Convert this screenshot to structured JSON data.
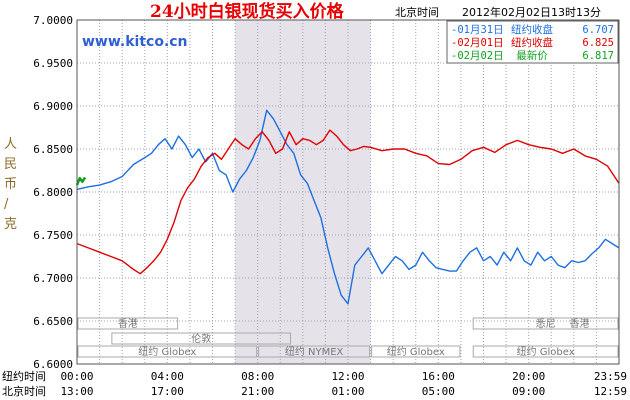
{
  "title": "24小时白银现货买入价格",
  "time_zone_label": "北京时间",
  "timestamp": "2012年02月02日13时13分",
  "watermark": "www.kitco.cn",
  "y_axis_label": "人民币/克",
  "legend": [
    {
      "label": "01月31日",
      "desc": "纽约收盘",
      "value": "6.707",
      "color": "#1e6fe0"
    },
    {
      "label": "02月01日",
      "desc": "纽约收盘",
      "value": "6.825",
      "color": "#e00000"
    },
    {
      "label": "02月02日",
      "desc": "最新价",
      "value": "6.817",
      "color": "#10a020"
    }
  ],
  "sessions": [
    {
      "name": "香港",
      "row": 0,
      "start": 0,
      "end": 4.5
    },
    {
      "name": "悉尼",
      "row": 0,
      "start": 17.5,
      "end": 24
    },
    {
      "name": "香港",
      "row": 0,
      "start": 20.5,
      "end": 24
    },
    {
      "name": "伦敦",
      "row": 1,
      "start": 1.5,
      "end": 9.5
    },
    {
      "name": "纽约 Globex",
      "row": 2,
      "start": 0,
      "end": 8
    },
    {
      "name": "纽约 NYMEX",
      "row": 2,
      "start": 8,
      "end": 13
    },
    {
      "name": "纽约 Globex",
      "row": 2,
      "start": 13,
      "end": 17
    },
    {
      "name": "纽约 Globex",
      "row": 2,
      "start": 17.5,
      "end": 24
    }
  ],
  "x_rows": [
    {
      "label": "纽约时间",
      "ticks": [
        "00:00",
        "04:00",
        "08:00",
        "12:00",
        "16:00",
        "20:00",
        "23:59"
      ]
    },
    {
      "label": "北京时间",
      "ticks": [
        "13:00",
        "17:00",
        "21:00",
        "01:00",
        "05:00",
        "09:00",
        "12:59"
      ]
    }
  ],
  "chart_data": {
    "type": "line",
    "title": "24小时白银现货买入价格",
    "ylabel": "人民币/克",
    "ylim": [
      6.6,
      7.0
    ],
    "xlim": [
      0,
      24
    ],
    "y_ticks": [
      "6.6000",
      "6.6500",
      "6.7000",
      "6.7500",
      "6.8000",
      "6.8500",
      "6.9000",
      "6.9500",
      "7.0000"
    ],
    "grid": true,
    "highlight_band": [
      7.0,
      13.0
    ],
    "legend_position": "top-right",
    "series": [
      {
        "name": "01月31日",
        "color": "#1e6fe0",
        "x": [
          0,
          0.5,
          1,
          1.5,
          2,
          2.5,
          3,
          3.3,
          3.6,
          3.9,
          4.2,
          4.5,
          4.8,
          5.1,
          5.4,
          5.7,
          6,
          6.3,
          6.6,
          6.9,
          7.2,
          7.5,
          7.8,
          8.1,
          8.4,
          8.7,
          9,
          9.3,
          9.6,
          9.9,
          10.2,
          10.5,
          10.8,
          11.1,
          11.4,
          11.7,
          12,
          12.3,
          12.6,
          12.9,
          13.2,
          13.5,
          13.8,
          14.1,
          14.4,
          14.7,
          15,
          15.3,
          15.6,
          15.9,
          16.2,
          16.5,
          16.8,
          17.1,
          17.4,
          17.7,
          18,
          18.3,
          18.6,
          18.9,
          19.2,
          19.5,
          19.8,
          20.1,
          20.4,
          20.7,
          21,
          21.3,
          21.6,
          21.9,
          22.2,
          22.5,
          22.8,
          23.1,
          23.4,
          23.7,
          24
        ],
        "values": [
          6.803,
          6.806,
          6.808,
          6.812,
          6.818,
          6.832,
          6.84,
          6.845,
          6.855,
          6.862,
          6.85,
          6.865,
          6.855,
          6.84,
          6.85,
          6.835,
          6.845,
          6.825,
          6.82,
          6.8,
          6.815,
          6.825,
          6.84,
          6.86,
          6.895,
          6.885,
          6.87,
          6.855,
          6.845,
          6.82,
          6.81,
          6.79,
          6.77,
          6.735,
          6.705,
          6.68,
          6.67,
          6.715,
          6.725,
          6.735,
          6.72,
          6.705,
          6.715,
          6.725,
          6.72,
          6.71,
          6.715,
          6.73,
          6.72,
          6.712,
          6.71,
          6.708,
          6.708,
          6.72,
          6.73,
          6.735,
          6.72,
          6.725,
          6.715,
          6.73,
          6.72,
          6.735,
          6.72,
          6.715,
          6.73,
          6.72,
          6.725,
          6.715,
          6.712,
          6.72,
          6.718,
          6.72,
          6.728,
          6.735,
          6.745,
          6.74,
          6.735
        ]
      },
      {
        "name": "02月01日",
        "color": "#e00000",
        "x": [
          0,
          0.5,
          1,
          1.5,
          2,
          2.5,
          2.8,
          3.1,
          3.4,
          3.7,
          4,
          4.3,
          4.6,
          4.9,
          5.2,
          5.5,
          5.8,
          6.1,
          6.4,
          6.7,
          7,
          7.3,
          7.6,
          7.9,
          8.2,
          8.5,
          8.8,
          9.1,
          9.4,
          9.7,
          10,
          10.3,
          10.6,
          10.9,
          11.2,
          11.5,
          11.8,
          12.1,
          12.4,
          12.7,
          13,
          13.5,
          14,
          14.5,
          15,
          15.5,
          16,
          16.5,
          17,
          17.5,
          18,
          18.5,
          19,
          19.5,
          20,
          20.5,
          21,
          21.5,
          22,
          22.5,
          23,
          23.5,
          24
        ],
        "values": [
          6.74,
          6.735,
          6.73,
          6.725,
          6.72,
          6.71,
          6.705,
          6.712,
          6.72,
          6.73,
          6.745,
          6.765,
          6.79,
          6.805,
          6.815,
          6.83,
          6.84,
          6.845,
          6.838,
          6.85,
          6.862,
          6.855,
          6.85,
          6.862,
          6.87,
          6.86,
          6.845,
          6.85,
          6.87,
          6.855,
          6.862,
          6.86,
          6.855,
          6.86,
          6.872,
          6.865,
          6.855,
          6.848,
          6.85,
          6.853,
          6.852,
          6.848,
          6.85,
          6.85,
          6.845,
          6.842,
          6.833,
          6.832,
          6.838,
          6.848,
          6.852,
          6.846,
          6.855,
          6.86,
          6.855,
          6.852,
          6.85,
          6.845,
          6.85,
          6.842,
          6.838,
          6.83,
          6.81
        ]
      },
      {
        "name": "02月02日",
        "color": "#10a020",
        "x": [
          0,
          0.12,
          0.24,
          0.36
        ],
        "values": [
          6.808,
          6.816,
          6.812,
          6.817
        ]
      }
    ]
  }
}
